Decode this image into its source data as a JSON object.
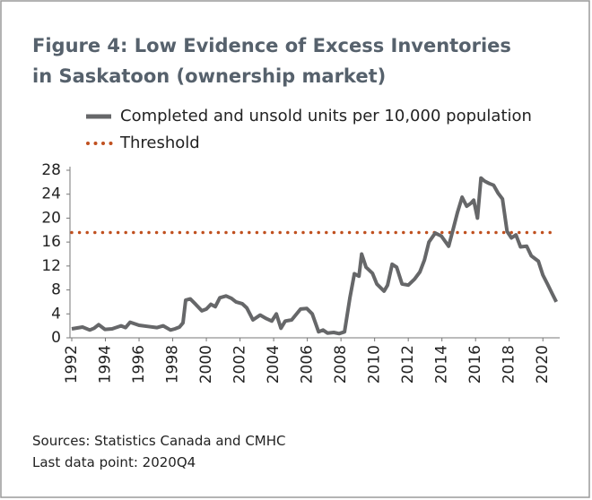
{
  "chart_data": {
    "type": "line",
    "title_lines": [
      "Figure 4: Low Evidence of Excess Inventories",
      "in Saskatoon (ownership market)"
    ],
    "notes": [
      "Sources: Statistics Canada and CMHC",
      "Last data point: 2020Q4"
    ],
    "x": [
      1992.0,
      1992.64,
      1993.07,
      1993.33,
      1993.6,
      1993.97,
      1994.4,
      1994.93,
      1995.2,
      1995.47,
      1996.0,
      1996.53,
      1997.07,
      1997.44,
      1997.87,
      1998.13,
      1998.4,
      1998.61,
      1998.77,
      1999.04,
      1999.36,
      1999.73,
      2000.0,
      2000.27,
      2000.53,
      2000.8,
      2001.17,
      2001.49,
      2001.76,
      2002.13,
      2002.4,
      2002.77,
      2003.2,
      2003.57,
      2003.89,
      2004.16,
      2004.43,
      2004.69,
      2005.07,
      2005.6,
      2005.97,
      2006.29,
      2006.67,
      2006.93,
      2007.2,
      2007.57,
      2007.89,
      2008.21,
      2008.53,
      2008.8,
      2009.07,
      2009.23,
      2009.49,
      2009.87,
      2010.13,
      2010.56,
      2010.77,
      2011.04,
      2011.31,
      2011.63,
      2012.0,
      2012.37,
      2012.69,
      2012.96,
      2013.23,
      2013.6,
      2013.97,
      2014.4,
      2014.67,
      2014.93,
      2015.2,
      2015.47,
      2015.73,
      2015.89,
      2016.11,
      2016.32,
      2016.53,
      2016.8,
      2017.07,
      2017.33,
      2017.6,
      2017.87,
      2018.13,
      2018.4,
      2018.67,
      2019.04,
      2019.31,
      2019.73,
      2020.0,
      2020.27,
      2020.53,
      2020.8
    ],
    "series": [
      {
        "name": "Completed and unsold units per 10,000 population",
        "color": "#666769",
        "values": [
          1.5,
          1.8,
          1.3,
          1.6,
          2.2,
          1.4,
          1.5,
          2.0,
          1.7,
          2.6,
          2.1,
          1.9,
          1.7,
          2.0,
          1.3,
          1.5,
          1.8,
          2.5,
          6.3,
          6.5,
          5.6,
          4.5,
          4.8,
          5.6,
          5.2,
          6.7,
          7.0,
          6.6,
          6.0,
          5.7,
          5.0,
          3.0,
          3.8,
          3.2,
          2.8,
          4.0,
          1.6,
          2.8,
          3.0,
          4.8,
          4.9,
          4.0,
          1.0,
          1.3,
          0.8,
          0.9,
          0.7,
          1.0,
          6.7,
          10.7,
          10.3,
          14.0,
          11.8,
          10.8,
          9.0,
          7.8,
          8.8,
          12.3,
          11.8,
          9.0,
          8.8,
          9.8,
          11.0,
          13.0,
          16.0,
          17.5,
          17.0,
          15.3,
          18.2,
          21.0,
          23.5,
          22.0,
          22.5,
          23.0,
          20.0,
          26.7,
          26.2,
          25.8,
          25.5,
          24.2,
          23.2,
          17.8,
          16.7,
          17.2,
          15.2,
          15.3,
          13.7,
          12.8,
          10.5,
          9.0,
          7.5,
          6.0
        ]
      }
    ],
    "threshold": {
      "name": "Threshold",
      "value": 17.6,
      "color": "#c0501f"
    },
    "xlim": [
      1992,
      2021
    ],
    "xticks": [
      1992,
      1994,
      1996,
      1998,
      2000,
      2002,
      2004,
      2006,
      2008,
      2010,
      2012,
      2014,
      2016,
      2018,
      2020
    ],
    "ylim": [
      0,
      28
    ],
    "yticks": [
      0,
      4,
      8,
      12,
      16,
      20,
      24,
      28
    ]
  }
}
